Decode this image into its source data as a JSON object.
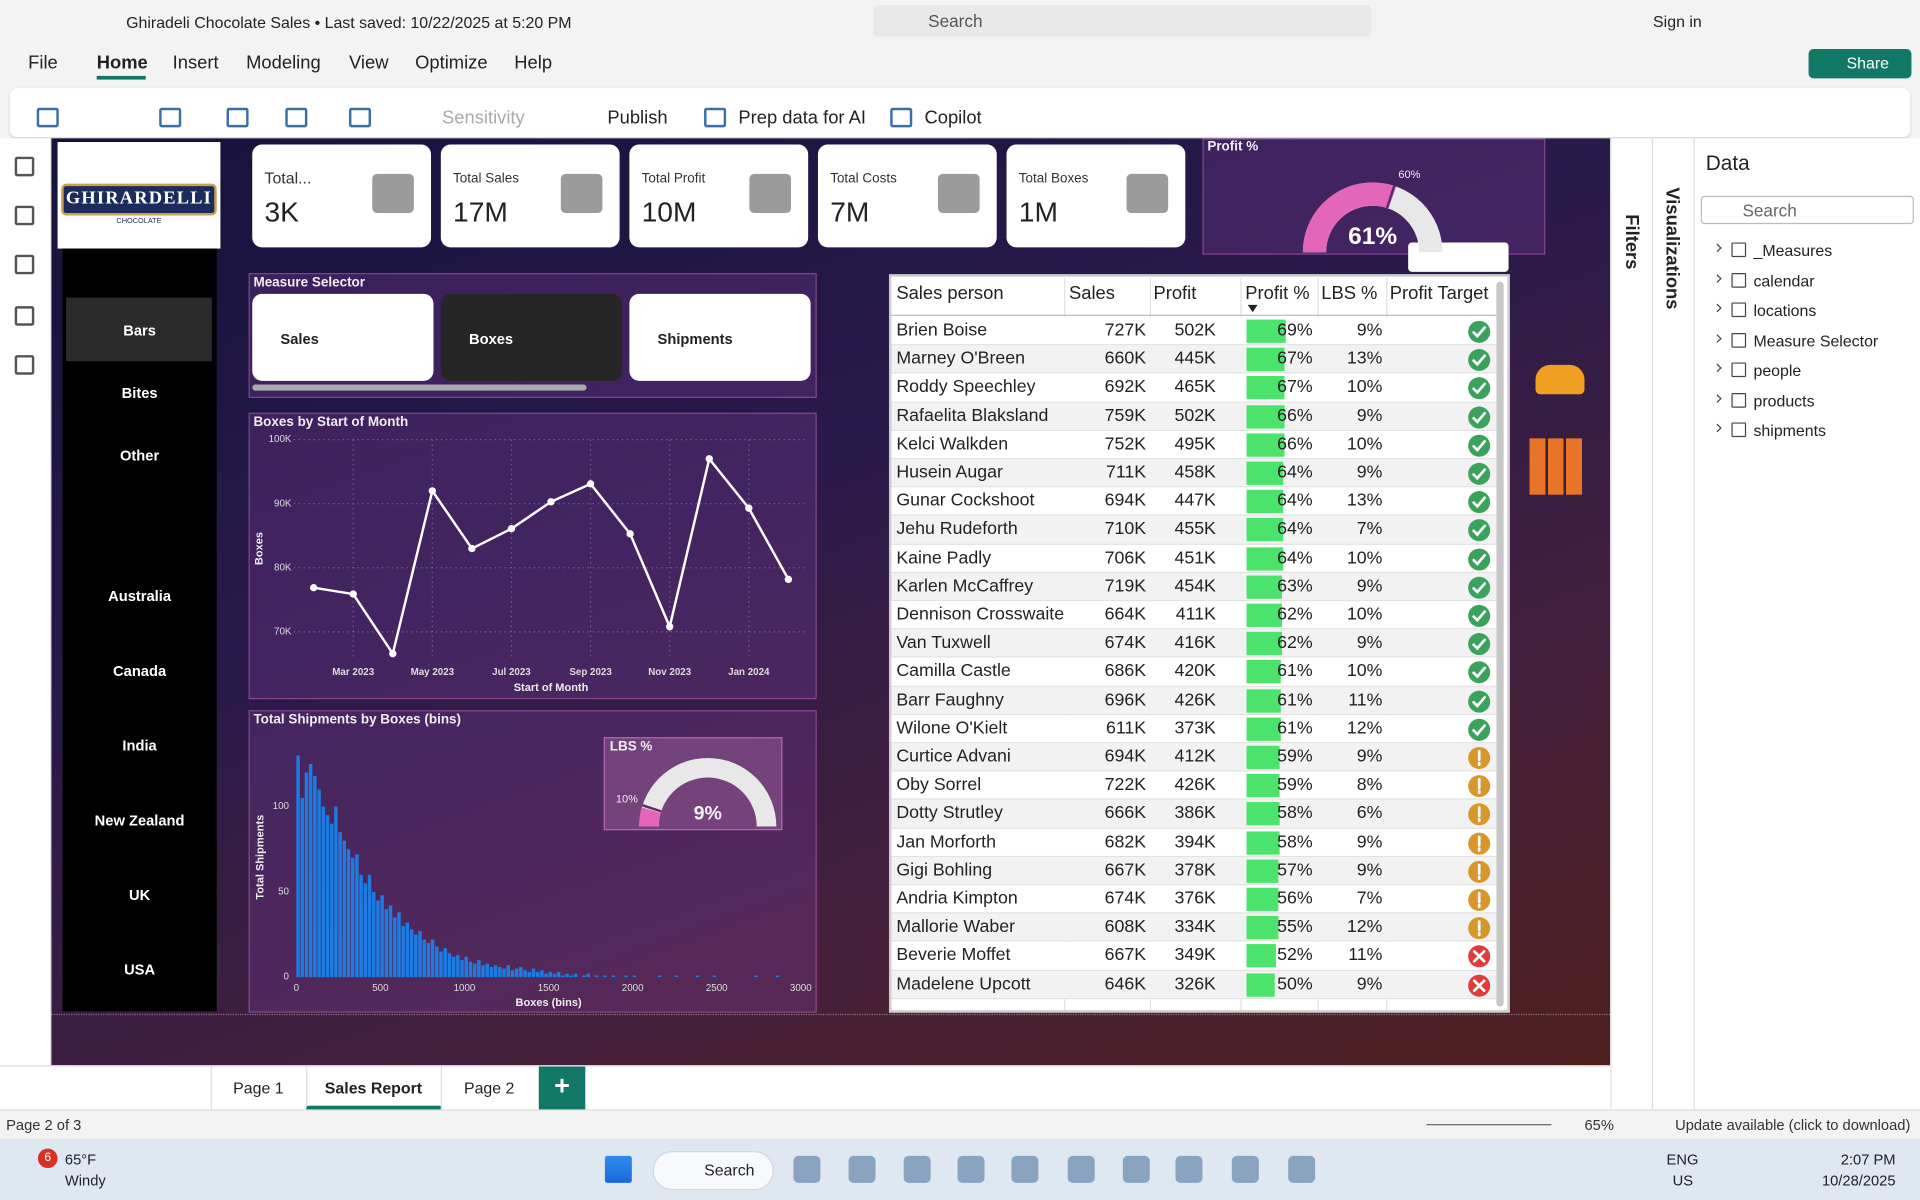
{
  "app": {
    "title": "Ghiradeli Chocolate Sales • Last saved: 10/22/2025 at 5:20 PM",
    "search": "Search",
    "sign_in": "Sign in"
  },
  "menu": {
    "items": [
      "File",
      "Home",
      "Insert",
      "Modeling",
      "View",
      "Optimize",
      "Help"
    ],
    "active": 1,
    "share": "Share"
  },
  "ribbon": [
    "Sensitivity",
    "Publish",
    "Prep data for AI",
    "Copilot"
  ],
  "logo": {
    "name": "GHIRARDELLI",
    "sub": "CHOCOLATE"
  },
  "nav": {
    "categories": [
      "Bars",
      "Bites",
      "Other"
    ],
    "selected": 0,
    "countries": [
      "Australia",
      "Canada",
      "India",
      "New Zealand",
      "UK",
      "USA"
    ]
  },
  "cards": [
    {
      "label": "Total...",
      "value": "3K"
    },
    {
      "label": "Total Sales",
      "value": "17M"
    },
    {
      "label": "Total Profit",
      "value": "10M"
    },
    {
      "label": "Total Costs",
      "value": "7M"
    },
    {
      "label": "Total Boxes",
      "value": "1M"
    }
  ],
  "measure_selector": {
    "title": "Measure Selector",
    "options": [
      "Sales",
      "Boxes",
      "Shipments"
    ],
    "selected": 1
  },
  "table": {
    "columns": [
      "Sales person",
      "Sales",
      "Profit",
      "Profit %",
      "LBS %",
      "Profit Target"
    ],
    "data_bar_lim": [
      0,
      125
    ],
    "data_bar_color": "#4be36b",
    "icon_thresholds": [
      55,
      60
    ],
    "icon_colors": [
      "#e03c3c",
      "#d9962a",
      "#3aa35b"
    ],
    "rows": [
      {
        "name": "Brien Boise",
        "sales": "727K",
        "profit": "502K",
        "profit_pct": {
          "value": 69,
          "label": "69%"
        },
        "lbs": "9%"
      },
      {
        "name": "Marney O'Breen",
        "sales": "660K",
        "profit": "445K",
        "profit_pct": {
          "value": 67,
          "label": "67%"
        },
        "lbs": "13%"
      },
      {
        "name": "Roddy Speechley",
        "sales": "692K",
        "profit": "465K",
        "profit_pct": {
          "value": 67,
          "label": "67%"
        },
        "lbs": "10%"
      },
      {
        "name": "Rafaelita Blaksland",
        "sales": "759K",
        "profit": "502K",
        "profit_pct": {
          "value": 66,
          "label": "66%"
        },
        "lbs": "9%"
      },
      {
        "name": "Kelci Walkden",
        "sales": "752K",
        "profit": "495K",
        "profit_pct": {
          "value": 66,
          "label": "66%"
        },
        "lbs": "10%"
      },
      {
        "name": "Husein Augar",
        "sales": "711K",
        "profit": "458K",
        "profit_pct": {
          "value": 64,
          "label": "64%"
        },
        "lbs": "9%"
      },
      {
        "name": "Gunar Cockshoot",
        "sales": "694K",
        "profit": "447K",
        "profit_pct": {
          "value": 64,
          "label": "64%"
        },
        "lbs": "13%"
      },
      {
        "name": "Jehu Rudeforth",
        "sales": "710K",
        "profit": "455K",
        "profit_pct": {
          "value": 64,
          "label": "64%"
        },
        "lbs": "7%"
      },
      {
        "name": "Kaine Padly",
        "sales": "706K",
        "profit": "451K",
        "profit_pct": {
          "value": 64,
          "label": "64%"
        },
        "lbs": "10%"
      },
      {
        "name": "Karlen McCaffrey",
        "sales": "719K",
        "profit": "454K",
        "profit_pct": {
          "value": 63,
          "label": "63%"
        },
        "lbs": "9%"
      },
      {
        "name": "Dennison Crosswaite",
        "sales": "664K",
        "profit": "411K",
        "profit_pct": {
          "value": 62,
          "label": "62%"
        },
        "lbs": "10%"
      },
      {
        "name": "Van Tuxwell",
        "sales": "674K",
        "profit": "416K",
        "profit_pct": {
          "value": 62,
          "label": "62%"
        },
        "lbs": "9%"
      },
      {
        "name": "Camilla Castle",
        "sales": "686K",
        "profit": "420K",
        "profit_pct": {
          "value": 61,
          "label": "61%"
        },
        "lbs": "10%"
      },
      {
        "name": "Barr Faughny",
        "sales": "696K",
        "profit": "426K",
        "profit_pct": {
          "value": 61,
          "label": "61%"
        },
        "lbs": "11%"
      },
      {
        "name": "Wilone O'Kielt",
        "sales": "611K",
        "profit": "373K",
        "profit_pct": {
          "value": 61,
          "label": "61%"
        },
        "lbs": "12%"
      },
      {
        "name": "Curtice Advani",
        "sales": "694K",
        "profit": "412K",
        "profit_pct": {
          "value": 59,
          "label": "59%"
        },
        "lbs": "9%"
      },
      {
        "name": "Oby Sorrel",
        "sales": "722K",
        "profit": "426K",
        "profit_pct": {
          "value": 59,
          "label": "59%"
        },
        "lbs": "8%"
      },
      {
        "name": "Dotty Strutley",
        "sales": "666K",
        "profit": "386K",
        "profit_pct": {
          "value": 58,
          "label": "58%"
        },
        "lbs": "6%"
      },
      {
        "name": "Jan Morforth",
        "sales": "682K",
        "profit": "394K",
        "profit_pct": {
          "value": 58,
          "label": "58%"
        },
        "lbs": "9%"
      },
      {
        "name": "Gigi Bohling",
        "sales": "667K",
        "profit": "378K",
        "profit_pct": {
          "value": 57,
          "label": "57%"
        },
        "lbs": "9%"
      },
      {
        "name": "Andria Kimpton",
        "sales": "674K",
        "profit": "376K",
        "profit_pct": {
          "value": 56,
          "label": "56%"
        },
        "lbs": "7%"
      },
      {
        "name": "Mallorie Waber",
        "sales": "608K",
        "profit": "334K",
        "profit_pct": {
          "value": 55,
          "label": "55%"
        },
        "lbs": "12%"
      },
      {
        "name": "Beverie Moffet",
        "sales": "667K",
        "profit": "349K",
        "profit_pct": {
          "value": 52,
          "label": "52%"
        },
        "lbs": "11%"
      },
      {
        "name": "Madelene Upcott",
        "sales": "646K",
        "profit": "326K",
        "profit_pct": {
          "value": 50,
          "label": "50%"
        },
        "lbs": "9%"
      }
    ]
  },
  "chart_data": [
    {
      "type": "line",
      "title": "Boxes by Start of Month",
      "x_label": "Start of Month",
      "y_label": "Boxes",
      "categories": [
        null,
        "Mar 2023",
        null,
        "May 2023",
        null,
        "Jul 2023",
        null,
        "Sep 2023",
        null,
        "Nov 2023",
        null,
        "Jan 2024",
        null
      ],
      "values": [
        76900,
        75900,
        66600,
        92000,
        83000,
        86100,
        90300,
        93100,
        85300,
        70800,
        97000,
        89300,
        78200
      ],
      "ylim": [
        66000,
        100000
      ],
      "yticks": [
        {
          "value": 70000,
          "label": "70K"
        },
        {
          "value": 80000,
          "label": "80K"
        },
        {
          "value": 90000,
          "label": "90K"
        },
        {
          "value": 100000,
          "label": "100K"
        }
      ],
      "grid": true,
      "color": "#ffffff"
    },
    {
      "type": "histogram",
      "title": "Total Shipments by Boxes (bins)",
      "x_label": "Boxes (bins)",
      "y_label": "Total Shipments",
      "bins": [
        0,
        25,
        50,
        75,
        100,
        125,
        150,
        175,
        200,
        225,
        250,
        275,
        300,
        325,
        350,
        375,
        400,
        425,
        450,
        475,
        500,
        525,
        550,
        575,
        600,
        625,
        650,
        675,
        700,
        725,
        750,
        775,
        800,
        825,
        850,
        875,
        900,
        925,
        950,
        975,
        1000,
        1025,
        1050,
        1075,
        1100,
        1125,
        1150,
        1175,
        1200,
        1225,
        1250,
        1275,
        1300,
        1325,
        1350,
        1375,
        1400,
        1425,
        1450,
        1475,
        1500,
        1525,
        1550,
        1575,
        1600,
        1625,
        1650,
        1675,
        1700,
        1725,
        1750,
        1775,
        1800,
        1825,
        1850,
        1875,
        1900,
        1925,
        1950,
        1975,
        2000,
        2025,
        2050,
        2075,
        2100,
        2125,
        2150,
        2175,
        2200,
        2225,
        2250,
        2275,
        2300,
        2325,
        2350,
        2375,
        2400,
        2425,
        2450,
        2475,
        2500,
        2525,
        2550,
        2575,
        2600,
        2625,
        2650,
        2675,
        2700,
        2725,
        2750,
        2775,
        2800,
        2825,
        2850,
        2875,
        2900,
        2925,
        2950,
        2975,
        3000
      ],
      "values": [
        130,
        105,
        120,
        125,
        118,
        110,
        100,
        95,
        90,
        100,
        85,
        80,
        75,
        70,
        72,
        60,
        55,
        60,
        50,
        45,
        48,
        40,
        42,
        35,
        38,
        30,
        32,
        28,
        25,
        27,
        22,
        20,
        22,
        18,
        15,
        17,
        14,
        12,
        13,
        10,
        12,
        9,
        8,
        10,
        7,
        8,
        6,
        7,
        6,
        5,
        7,
        4,
        5,
        6,
        4,
        3,
        5,
        3,
        4,
        2,
        3,
        2,
        3,
        1,
        2,
        1,
        2,
        0,
        1,
        2,
        0,
        1,
        0,
        1,
        0,
        1,
        0,
        0,
        1,
        0,
        1,
        0,
        0,
        0,
        0,
        0,
        1,
        0,
        0,
        0,
        1,
        0,
        0,
        0,
        0,
        1,
        0,
        0,
        0,
        1,
        0,
        0,
        0,
        0,
        0,
        0,
        0,
        0,
        0,
        1,
        0,
        0,
        0,
        0,
        1,
        0,
        0,
        0,
        0,
        0
      ],
      "xlim": [
        0,
        3000
      ],
      "xticks": [
        0,
        500,
        1000,
        1500,
        2000,
        2500,
        3000
      ],
      "ylim": [
        0,
        140
      ],
      "yticks": [
        0,
        50,
        100
      ],
      "color": "#1e7be0"
    },
    {
      "type": "gauge",
      "title": "Profit %",
      "value": 61,
      "value_label": "61%",
      "target": 60,
      "target_label": "60%",
      "lim": [
        0,
        100
      ],
      "color": "#e466b8"
    },
    {
      "type": "gauge",
      "title": "LBS %",
      "value": 9,
      "value_label": "9%",
      "target": 10,
      "target_label": "10%",
      "lim": [
        0,
        100
      ],
      "color": "#e466b8"
    }
  ],
  "panes": {
    "filters": "Filters",
    "visualizations": "Visualizations",
    "data": "Data",
    "search": "Search",
    "tables": [
      "_Measures",
      "calendar",
      "locations",
      "Measure Selector",
      "people",
      "products",
      "shipments"
    ]
  },
  "pages": {
    "tabs": [
      "Page 1",
      "Sales Report",
      "Page 2"
    ],
    "active": 1,
    "status": "Page 2 of 3",
    "zoom": "65%",
    "update": "Update available (click to download)"
  },
  "taskbar": {
    "badge": "6",
    "temp": "65°F",
    "weather": "Windy",
    "search": "Search",
    "lang": "ENG",
    "region": "US",
    "time": "2:07 PM",
    "date": "10/28/2025"
  }
}
